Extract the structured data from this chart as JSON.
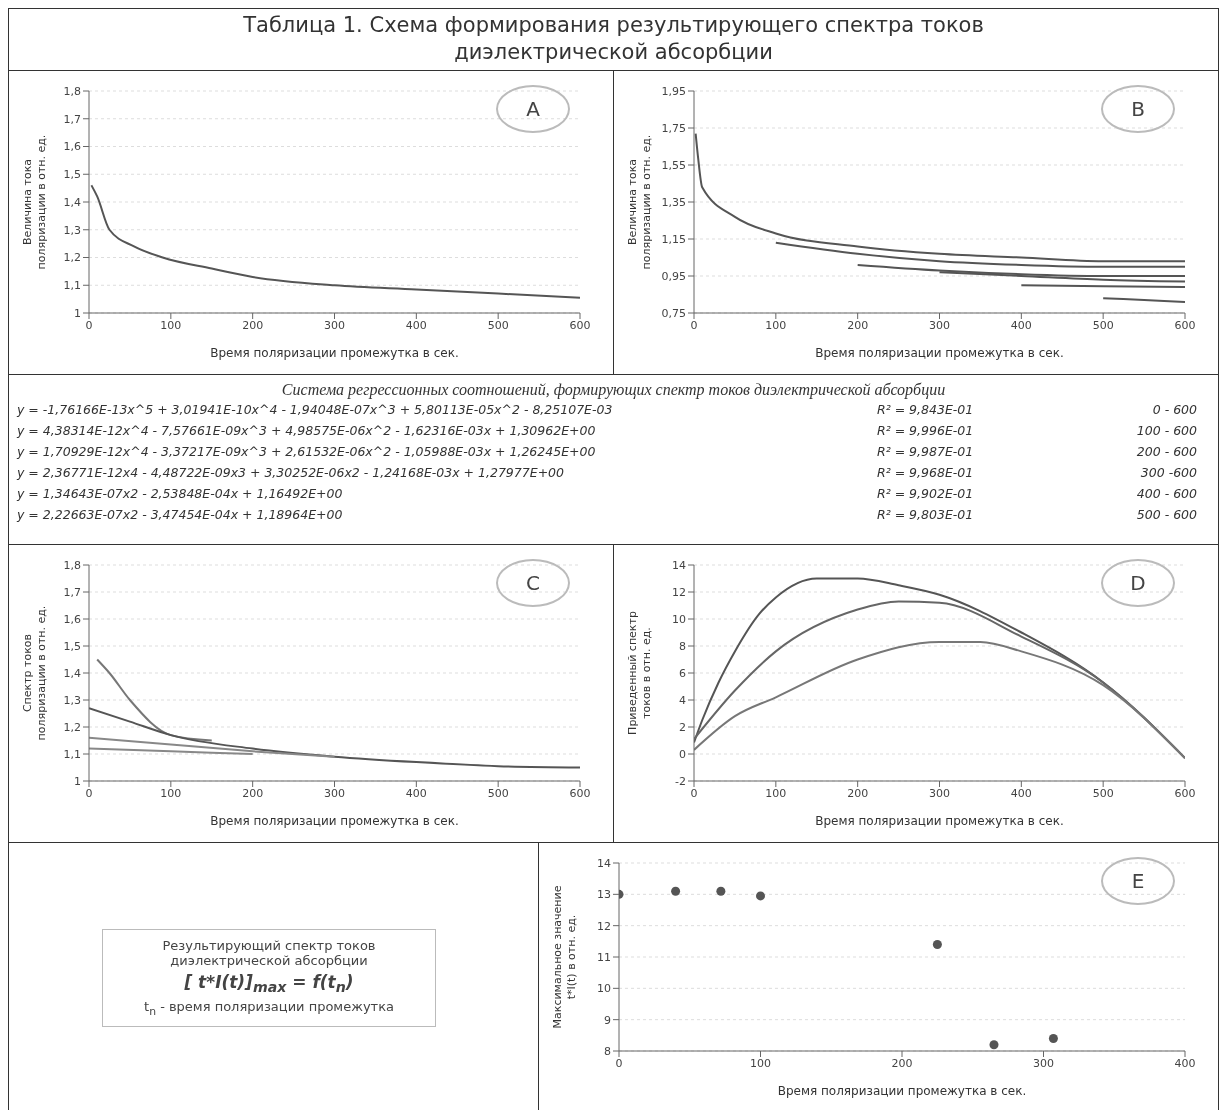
{
  "chart_data": [
    {
      "type": "other",
      "title": "Таблица 1. Схема формирования результирующего спектра токов диэлектрической абсорбции"
    },
    {
      "type": "line",
      "annotations": [
        "A"
      ],
      "xlabel": "Время поляризации промежутка в сек.",
      "ylabel": "Величина тока поляризации в отн. ед.",
      "xlim": [
        0,
        600
      ],
      "xticks": [
        0,
        100,
        200,
        300,
        400,
        500,
        600
      ],
      "ylim": [
        1,
        1.8
      ],
      "yticks": [
        1,
        {
          "value": 1.1,
          "label": "1,1"
        },
        {
          "value": 1.2,
          "label": "1,2"
        },
        {
          "value": 1.3,
          "label": "1,3"
        },
        {
          "value": 1.4,
          "label": "1,4"
        },
        {
          "value": 1.5,
          "label": "1,5"
        },
        {
          "value": 1.6,
          "label": "1,6"
        },
        {
          "value": 1.7,
          "label": "1,7"
        },
        {
          "value": 1.8,
          "label": "1,8"
        }
      ],
      "grid": "y",
      "series": [
        {
          "color": "#555555",
          "x": [
            3,
            10,
            25,
            55,
            90,
            150,
            200,
            300,
            400,
            500,
            600
          ],
          "values": [
            1.46,
            1.42,
            1.3,
            1.24,
            1.2,
            1.16,
            1.13,
            1.1,
            1.085,
            1.07,
            1.055
          ]
        }
      ]
    },
    {
      "type": "line",
      "annotations": [
        "B"
      ],
      "xlabel": "Время поляризации промежутка в сек.",
      "ylabel": "Величина тока поляризации в отн. ед.",
      "xlim": [
        0,
        600
      ],
      "xticks": [
        0,
        100,
        200,
        300,
        400,
        500,
        600
      ],
      "ylim": [
        0.75,
        1.95
      ],
      "yticks": [
        {
          "value": 0.75,
          "label": "0,75"
        },
        {
          "value": 0.95,
          "label": "0,95"
        },
        {
          "value": 1.15,
          "label": "1,15"
        },
        {
          "value": 1.35,
          "label": "1,35"
        },
        {
          "value": 1.55,
          "label": "1,55"
        },
        {
          "value": 1.75,
          "label": "1,75"
        },
        {
          "value": 1.95,
          "label": "1,95"
        }
      ],
      "grid": "y",
      "series": [
        {
          "color": "#555555",
          "x": [
            2,
            5,
            10,
            50,
            100,
            200,
            300,
            400,
            500,
            600
          ],
          "values": [
            1.72,
            1.59,
            1.43,
            1.27,
            1.18,
            1.11,
            1.07,
            1.05,
            1.03,
            1.03
          ]
        },
        {
          "color": "#555555",
          "x": [
            100,
            200,
            300,
            400,
            500,
            600
          ],
          "values": [
            1.13,
            1.07,
            1.03,
            1.01,
            1.0,
            1.0
          ]
        },
        {
          "color": "#555555",
          "x": [
            200,
            300,
            400,
            500,
            600
          ],
          "values": [
            1.01,
            0.98,
            0.96,
            0.95,
            0.95
          ]
        },
        {
          "color": "#555555",
          "x": [
            300,
            400,
            500,
            600
          ],
          "values": [
            0.97,
            0.95,
            0.93,
            0.92
          ]
        },
        {
          "color": "#555555",
          "x": [
            400,
            500,
            600
          ],
          "values": [
            0.9,
            0.895,
            0.89
          ]
        },
        {
          "color": "#555555",
          "x": [
            500,
            550,
            600
          ],
          "values": [
            0.83,
            0.82,
            0.81
          ]
        }
      ]
    },
    {
      "type": "other",
      "title": "Система регрессионных соотношений, формирующих спектр токов диэлектрической абсорбции",
      "annotations": [
        "y = -1,76166E-13x^5 + 3,01941E-10x^4 - 1,94048E-07x^3 + 5,80113E-05x^2 - 8,25107E-03",
        "R² = 9,843E-01",
        "0 - 600",
        "y = 4,38314E-12x^4 - 7,57661E-09x^3 + 4,98575E-06x^2 - 1,62316E-03x + 1,30962E+00",
        "R² = 9,996E-01",
        "100 - 600",
        "y = 1,70929E-12x^4 - 3,37217E-09x^3 + 2,61532E-06x^2 - 1,05988E-03x + 1,26245E+00",
        "R² = 9,987E-01",
        "200 - 600",
        "y = 2,36771E-12x4 - 4,48722E-09x3 + 3,30252E-06x2 - 1,24168E-03x + 1,27977E+00",
        "R² = 9,968E-01",
        "300 -600",
        "y = 1,34643E-07x2 - 2,53848E-04x + 1,16492E+00",
        "R² = 9,902E-01",
        "400 - 600",
        "y = 2,22663E-07x2 - 3,47454E-04x + 1,18964E+00",
        "R² = 9,803E-01",
        "500 - 600"
      ]
    },
    {
      "type": "line",
      "annotations": [
        "C"
      ],
      "xlabel": "Время поляризации промежутка в сек.",
      "ylabel": "Спектр токов поляризации в отн. ед.",
      "xlim": [
        0,
        600
      ],
      "xticks": [
        0,
        100,
        200,
        300,
        400,
        500,
        600
      ],
      "ylim": [
        1,
        1.8
      ],
      "yticks": [
        1,
        {
          "value": 1.1,
          "label": "1,1"
        },
        {
          "value": 1.2,
          "label": "1,2"
        },
        {
          "value": 1.3,
          "label": "1,3"
        },
        {
          "value": 1.4,
          "label": "1,4"
        },
        {
          "value": 1.5,
          "label": "1,5"
        },
        {
          "value": 1.6,
          "label": "1,6"
        },
        {
          "value": 1.7,
          "label": "1,7"
        },
        {
          "value": 1.8,
          "label": "1,8"
        }
      ],
      "grid": "y",
      "series": [
        {
          "color": "#777777",
          "x": [
            10,
            25,
            50,
            100,
            150
          ],
          "values": [
            1.45,
            1.4,
            1.3,
            1.17,
            1.15
          ]
        },
        {
          "color": "#555555",
          "x": [
            0,
            50,
            100,
            200,
            300,
            400,
            500,
            600
          ],
          "values": [
            1.27,
            1.22,
            1.17,
            1.12,
            1.09,
            1.07,
            1.055,
            1.05
          ]
        },
        {
          "color": "#888888",
          "x": [
            0,
            100,
            200,
            300
          ],
          "values": [
            1.16,
            1.135,
            1.11,
            1.09
          ]
        },
        {
          "color": "#888888",
          "x": [
            0,
            100,
            200
          ],
          "values": [
            1.12,
            1.11,
            1.1
          ]
        }
      ]
    },
    {
      "type": "line",
      "annotations": [
        "D"
      ],
      "xlabel": "Время поляризации промежутка в сек.",
      "ylabel": "Приведенный спектр токов в отн. ед.",
      "xlim": [
        0,
        600
      ],
      "xticks": [
        0,
        100,
        200,
        300,
        400,
        500,
        600
      ],
      "ylim": [
        -2,
        14
      ],
      "yticks": [
        -2,
        0,
        2,
        4,
        6,
        8,
        10,
        12,
        14
      ],
      "grid": "y",
      "series": [
        {
          "color": "#555555",
          "x": [
            0,
            10,
            30,
            50,
            80,
            100,
            150,
            200,
            250,
            300,
            400,
            500,
            600
          ],
          "values": [
            0.85,
            2.5,
            5.3,
            7.6,
            10.4,
            11.6,
            13,
            13,
            12.5,
            11.8,
            9,
            5.3,
            -0.3
          ]
        },
        {
          "color": "#666666",
          "x": [
            0,
            50,
            100,
            200,
            250,
            300,
            400,
            500,
            600
          ],
          "values": [
            1.1,
            4.7,
            7.6,
            10.7,
            11.3,
            11.2,
            8.7,
            5.3,
            -0.3
          ]
        },
        {
          "color": "#777777",
          "x": [
            0,
            50,
            100,
            200,
            300,
            350,
            400,
            500,
            600
          ],
          "values": [
            0.3,
            2.8,
            4.2,
            7,
            8.3,
            8.3,
            7.6,
            5.1,
            -0.3
          ]
        }
      ]
    },
    {
      "type": "other",
      "annotations": [
        "Результирующий спектр токов диэлектрической абсорбции",
        "[ t*I(t)]$_{max}$ = f(t$_{n}$)",
        "t$_{n}$ - время поляризации промежутка"
      ]
    },
    {
      "type": "scatter",
      "annotations": [
        "E"
      ],
      "xlabel": "Время поляризации промежутка в сек.",
      "ylabel": "Максимальное значение t*I(t) в отн. ед.",
      "xlim": [
        0,
        400
      ],
      "xticks": [
        0,
        100,
        200,
        300,
        400
      ],
      "ylim": [
        8,
        14
      ],
      "yticks": [
        8,
        9,
        10,
        11,
        12,
        13,
        14
      ],
      "grid": "y",
      "marker": "circle",
      "series": [
        {
          "color": "#555555",
          "x": [
            0,
            40,
            72,
            100,
            225,
            265,
            307
          ],
          "values": [
            13,
            13.1,
            13.1,
            12.95,
            11.4,
            8.2,
            8.4
          ]
        }
      ]
    }
  ]
}
